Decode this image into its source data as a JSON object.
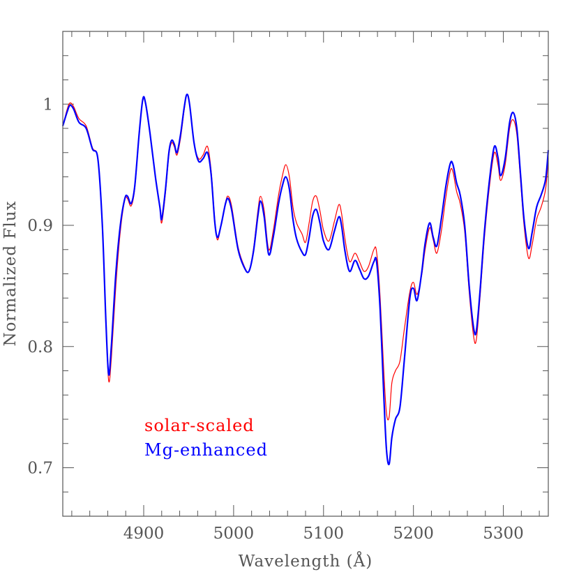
{
  "chart_data": {
    "type": "line",
    "xlabel": "Wavelength (Å)",
    "ylabel": "Normalized Flux",
    "xlim": [
      4810,
      5350
    ],
    "ylim": [
      0.66,
      1.06
    ],
    "xticks_major": [
      4900,
      5000,
      5100,
      5200,
      5300
    ],
    "xticks_minor_step": 20,
    "yticks_major": [
      0.7,
      0.8,
      0.9,
      1.0
    ],
    "ytick_labels": [
      "0.7",
      "0.8",
      "0.9",
      "1"
    ],
    "yticks_minor_step": 0.02,
    "grid": false,
    "legend": "lower-left, colored text labels",
    "series": [
      {
        "name": "solar-scaled",
        "color": "#ff0000",
        "points": [
          [
            4810,
            0.982
          ],
          [
            4815,
            0.996
          ],
          [
            4818,
            1.001
          ],
          [
            4822,
            0.998
          ],
          [
            4828,
            0.988
          ],
          [
            4836,
            0.982
          ],
          [
            4843,
            0.964
          ],
          [
            4849,
            0.955
          ],
          [
            4854,
            0.9
          ],
          [
            4858,
            0.82
          ],
          [
            4861,
            0.772
          ],
          [
            4864,
            0.79
          ],
          [
            4869,
            0.85
          ],
          [
            4874,
            0.895
          ],
          [
            4879,
            0.921
          ],
          [
            4882,
            0.922
          ],
          [
            4886,
            0.916
          ],
          [
            4890,
            0.93
          ],
          [
            4895,
            0.975
          ],
          [
            4899,
            1.003
          ],
          [
            4902,
            1.0
          ],
          [
            4907,
            0.975
          ],
          [
            4913,
            0.94
          ],
          [
            4918,
            0.915
          ],
          [
            4920,
            0.902
          ],
          [
            4924,
            0.925
          ],
          [
            4928,
            0.958
          ],
          [
            4931,
            0.968
          ],
          [
            4934,
            0.965
          ],
          [
            4937,
            0.958
          ],
          [
            4941,
            0.972
          ],
          [
            4945,
            0.995
          ],
          [
            4948,
            1.008
          ],
          [
            4951,
            1.0
          ],
          [
            4956,
            0.968
          ],
          [
            4961,
            0.955
          ],
          [
            4966,
            0.958
          ],
          [
            4971,
            0.965
          ],
          [
            4975,
            0.945
          ],
          [
            4979,
            0.905
          ],
          [
            4982,
            0.888
          ],
          [
            4986,
            0.9
          ],
          [
            4991,
            0.919
          ],
          [
            4994,
            0.924
          ],
          [
            4998,
            0.915
          ],
          [
            5005,
            0.882
          ],
          [
            5012,
            0.866
          ],
          [
            5017,
            0.862
          ],
          [
            5022,
            0.88
          ],
          [
            5027,
            0.912
          ],
          [
            5030,
            0.924
          ],
          [
            5034,
            0.912
          ],
          [
            5039,
            0.88
          ],
          [
            5044,
            0.895
          ],
          [
            5050,
            0.925
          ],
          [
            5054,
            0.94
          ],
          [
            5058,
            0.95
          ],
          [
            5062,
            0.94
          ],
          [
            5066,
            0.915
          ],
          [
            5070,
            0.902
          ],
          [
            5076,
            0.893
          ],
          [
            5080,
            0.886
          ],
          [
            5084,
            0.902
          ],
          [
            5088,
            0.92
          ],
          [
            5092,
            0.924
          ],
          [
            5096,
            0.912
          ],
          [
            5100,
            0.896
          ],
          [
            5106,
            0.887
          ],
          [
            5112,
            0.903
          ],
          [
            5117,
            0.917
          ],
          [
            5120,
            0.91
          ],
          [
            5124,
            0.888
          ],
          [
            5129,
            0.87
          ],
          [
            5135,
            0.877
          ],
          [
            5140,
            0.87
          ],
          [
            5145,
            0.862
          ],
          [
            5150,
            0.866
          ],
          [
            5156,
            0.88
          ],
          [
            5159,
            0.878
          ],
          [
            5163,
            0.84
          ],
          [
            5167,
            0.78
          ],
          [
            5170,
            0.745
          ],
          [
            5173,
            0.742
          ],
          [
            5176,
            0.77
          ],
          [
            5180,
            0.78
          ],
          [
            5185,
            0.788
          ],
          [
            5190,
            0.815
          ],
          [
            5196,
            0.845
          ],
          [
            5200,
            0.853
          ],
          [
            5204,
            0.843
          ],
          [
            5209,
            0.858
          ],
          [
            5213,
            0.88
          ],
          [
            5218,
            0.898
          ],
          [
            5222,
            0.888
          ],
          [
            5226,
            0.877
          ],
          [
            5231,
            0.895
          ],
          [
            5236,
            0.923
          ],
          [
            5241,
            0.945
          ],
          [
            5244,
            0.944
          ],
          [
            5248,
            0.928
          ],
          [
            5252,
            0.918
          ],
          [
            5257,
            0.895
          ],
          [
            5262,
            0.845
          ],
          [
            5267,
            0.808
          ],
          [
            5270,
            0.806
          ],
          [
            5274,
            0.84
          ],
          [
            5279,
            0.89
          ],
          [
            5285,
            0.935
          ],
          [
            5290,
            0.96
          ],
          [
            5294,
            0.95
          ],
          [
            5297,
            0.937
          ],
          [
            5302,
            0.95
          ],
          [
            5307,
            0.98
          ],
          [
            5311,
            0.987
          ],
          [
            5315,
            0.975
          ],
          [
            5319,
            0.938
          ],
          [
            5323,
            0.9
          ],
          [
            5328,
            0.873
          ],
          [
            5332,
            0.884
          ],
          [
            5337,
            0.905
          ],
          [
            5342,
            0.915
          ],
          [
            5347,
            0.93
          ],
          [
            5350,
            0.955
          ]
        ]
      },
      {
        "name": "Mg-enhanced",
        "color": "#0000ff",
        "points": [
          [
            4810,
            0.982
          ],
          [
            4815,
            0.994
          ],
          [
            4818,
            0.999
          ],
          [
            4822,
            0.996
          ],
          [
            4828,
            0.985
          ],
          [
            4836,
            0.98
          ],
          [
            4843,
            0.963
          ],
          [
            4849,
            0.955
          ],
          [
            4854,
            0.9
          ],
          [
            4858,
            0.82
          ],
          [
            4861,
            0.777
          ],
          [
            4864,
            0.8
          ],
          [
            4869,
            0.86
          ],
          [
            4874,
            0.9
          ],
          [
            4879,
            0.922
          ],
          [
            4882,
            0.924
          ],
          [
            4886,
            0.918
          ],
          [
            4890,
            0.932
          ],
          [
            4895,
            0.976
          ],
          [
            4899,
            1.004
          ],
          [
            4902,
            1.001
          ],
          [
            4907,
            0.976
          ],
          [
            4913,
            0.94
          ],
          [
            4918,
            0.915
          ],
          [
            4920,
            0.905
          ],
          [
            4924,
            0.928
          ],
          [
            4928,
            0.96
          ],
          [
            4931,
            0.97
          ],
          [
            4934,
            0.967
          ],
          [
            4937,
            0.96
          ],
          [
            4941,
            0.975
          ],
          [
            4945,
            0.997
          ],
          [
            4948,
            1.008
          ],
          [
            4951,
            1.0
          ],
          [
            4956,
            0.968
          ],
          [
            4961,
            0.953
          ],
          [
            4966,
            0.955
          ],
          [
            4971,
            0.96
          ],
          [
            4975,
            0.942
          ],
          [
            4979,
            0.903
          ],
          [
            4982,
            0.89
          ],
          [
            4986,
            0.9
          ],
          [
            4991,
            0.918
          ],
          [
            4994,
            0.922
          ],
          [
            4998,
            0.912
          ],
          [
            5005,
            0.88
          ],
          [
            5012,
            0.865
          ],
          [
            5017,
            0.862
          ],
          [
            5022,
            0.878
          ],
          [
            5027,
            0.908
          ],
          [
            5030,
            0.92
          ],
          [
            5034,
            0.907
          ],
          [
            5039,
            0.876
          ],
          [
            5044,
            0.89
          ],
          [
            5050,
            0.918
          ],
          [
            5054,
            0.932
          ],
          [
            5058,
            0.94
          ],
          [
            5062,
            0.93
          ],
          [
            5066,
            0.905
          ],
          [
            5070,
            0.889
          ],
          [
            5076,
            0.878
          ],
          [
            5080,
            0.876
          ],
          [
            5084,
            0.89
          ],
          [
            5088,
            0.908
          ],
          [
            5092,
            0.913
          ],
          [
            5096,
            0.902
          ],
          [
            5100,
            0.887
          ],
          [
            5106,
            0.88
          ],
          [
            5112,
            0.895
          ],
          [
            5117,
            0.907
          ],
          [
            5120,
            0.9
          ],
          [
            5124,
            0.878
          ],
          [
            5129,
            0.862
          ],
          [
            5135,
            0.871
          ],
          [
            5140,
            0.864
          ],
          [
            5145,
            0.856
          ],
          [
            5150,
            0.858
          ],
          [
            5156,
            0.87
          ],
          [
            5159,
            0.87
          ],
          [
            5163,
            0.83
          ],
          [
            5167,
            0.76
          ],
          [
            5170,
            0.715
          ],
          [
            5173,
            0.703
          ],
          [
            5176,
            0.725
          ],
          [
            5180,
            0.74
          ],
          [
            5185,
            0.75
          ],
          [
            5190,
            0.79
          ],
          [
            5196,
            0.84
          ],
          [
            5200,
            0.848
          ],
          [
            5204,
            0.838
          ],
          [
            5209,
            0.86
          ],
          [
            5213,
            0.885
          ],
          [
            5218,
            0.902
          ],
          [
            5222,
            0.89
          ],
          [
            5226,
            0.883
          ],
          [
            5231,
            0.905
          ],
          [
            5236,
            0.932
          ],
          [
            5241,
            0.951
          ],
          [
            5244,
            0.95
          ],
          [
            5248,
            0.935
          ],
          [
            5252,
            0.925
          ],
          [
            5257,
            0.9
          ],
          [
            5262,
            0.85
          ],
          [
            5267,
            0.815
          ],
          [
            5270,
            0.813
          ],
          [
            5274,
            0.845
          ],
          [
            5279,
            0.895
          ],
          [
            5285,
            0.94
          ],
          [
            5290,
            0.965
          ],
          [
            5294,
            0.956
          ],
          [
            5297,
            0.941
          ],
          [
            5302,
            0.955
          ],
          [
            5307,
            0.985
          ],
          [
            5311,
            0.993
          ],
          [
            5315,
            0.98
          ],
          [
            5319,
            0.943
          ],
          [
            5323,
            0.905
          ],
          [
            5328,
            0.881
          ],
          [
            5332,
            0.894
          ],
          [
            5337,
            0.915
          ],
          [
            5342,
            0.925
          ],
          [
            5347,
            0.938
          ],
          [
            5350,
            0.962
          ]
        ]
      }
    ]
  }
}
